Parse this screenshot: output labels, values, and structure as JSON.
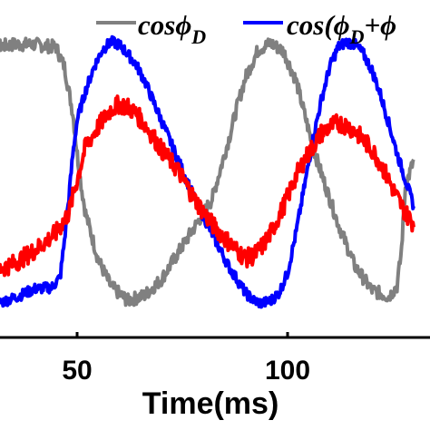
{
  "chart_data": {
    "type": "line",
    "xlabel": "Time(ms)",
    "x_ticks": [
      50,
      100
    ],
    "xlim": [
      27,
      130
    ],
    "ylim": [
      -1.1,
      1.1
    ],
    "grid": false,
    "legend_placement": "top-right",
    "legend": [
      {
        "text": "cos",
        "symbol": "ϕ",
        "sub": "D",
        "tail": ""
      },
      {
        "text": "cos(",
        "symbol": "ϕ",
        "sub": "D",
        "tail": "+ϕ"
      }
    ],
    "series": [
      {
        "color": "#808080",
        "noise": 0.05,
        "x": [
          27,
          30,
          35,
          40,
          45,
          47,
          49,
          50,
          51,
          52,
          55,
          58,
          62,
          66,
          70,
          74,
          78,
          82,
          86,
          88,
          90,
          93,
          96,
          99,
          102,
          104,
          106,
          108,
          112,
          116,
          120,
          124,
          126,
          127,
          128,
          130
        ],
        "y": [
          0.9,
          0.95,
          0.97,
          0.97,
          0.95,
          0.8,
          0.45,
          0.15,
          -0.1,
          -0.3,
          -0.65,
          -0.85,
          -0.96,
          -0.92,
          -0.8,
          -0.6,
          -0.4,
          -0.2,
          0.25,
          0.5,
          0.72,
          0.93,
          0.98,
          0.92,
          0.7,
          0.45,
          0.2,
          0.0,
          -0.38,
          -0.7,
          -0.88,
          -0.93,
          -0.85,
          -0.6,
          -0.1,
          0.1
        ]
      },
      {
        "color": "#0000ff",
        "noise": 0.04,
        "x": [
          27,
          30,
          35,
          40,
          44,
          46,
          47,
          48,
          49,
          50,
          52,
          54,
          56,
          58,
          60,
          62,
          64,
          66,
          68,
          70,
          74,
          78,
          82,
          86,
          90,
          92,
          94,
          96,
          98,
          100,
          102,
          104,
          106,
          108,
          110,
          112,
          114,
          116,
          118,
          120,
          122,
          124,
          126,
          128,
          130
        ],
        "y": [
          -1.0,
          -0.99,
          -0.94,
          -0.87,
          -0.86,
          -0.78,
          -0.5,
          -0.2,
          0.15,
          0.4,
          0.62,
          0.8,
          0.93,
          0.99,
          0.97,
          0.9,
          0.82,
          0.7,
          0.55,
          0.4,
          0.1,
          -0.2,
          -0.45,
          -0.7,
          -0.9,
          -0.96,
          -0.98,
          -0.96,
          -0.9,
          -0.75,
          -0.45,
          -0.1,
          0.25,
          0.55,
          0.8,
          0.95,
          0.99,
          0.97,
          0.9,
          0.78,
          0.6,
          0.38,
          0.15,
          -0.05,
          -0.25
        ]
      },
      {
        "color": "#ff0000",
        "noise": 0.07,
        "x": [
          27,
          30,
          35,
          40,
          45,
          48,
          50,
          52,
          55,
          58,
          60,
          62,
          64,
          66,
          68,
          70,
          74,
          78,
          82,
          86,
          90,
          92,
          94,
          96,
          98,
          100,
          102,
          104,
          106,
          108,
          110,
          112,
          114,
          116,
          118,
          120,
          122,
          124,
          126,
          128,
          130
        ],
        "y": [
          -0.73,
          -0.74,
          -0.68,
          -0.58,
          -0.45,
          -0.3,
          -0.05,
          0.2,
          0.35,
          0.48,
          0.52,
          0.5,
          0.45,
          0.37,
          0.28,
          0.18,
          0.02,
          -0.2,
          -0.38,
          -0.52,
          -0.64,
          -0.62,
          -0.55,
          -0.45,
          -0.32,
          -0.18,
          -0.02,
          0.1,
          0.2,
          0.3,
          0.35,
          0.38,
          0.36,
          0.32,
          0.25,
          0.18,
          0.08,
          -0.05,
          -0.18,
          -0.3,
          -0.38
        ]
      }
    ]
  }
}
